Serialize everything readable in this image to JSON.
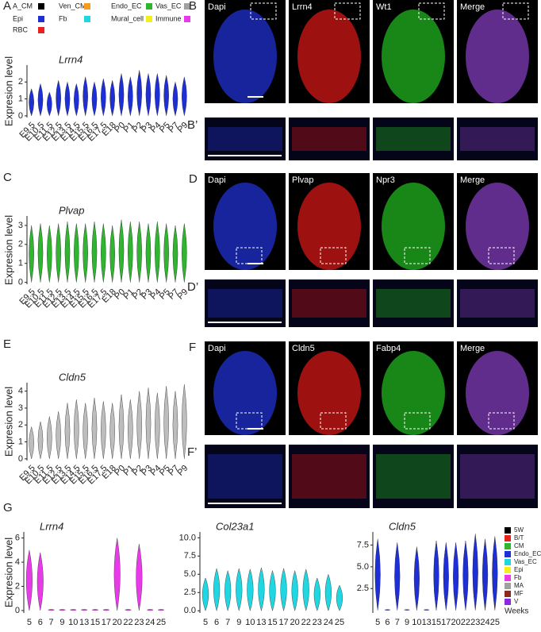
{
  "legend": {
    "items": [
      {
        "name": "A_CM",
        "color": "#000000"
      },
      {
        "name": "Ven_CM",
        "color": "#f39c1f"
      },
      {
        "name": "Endo_EC",
        "color": "#2fb52f"
      },
      {
        "name": "Vas_EC",
        "color": "#a0a0a0"
      },
      {
        "name": "Epi",
        "color": "#1e2fd6"
      },
      {
        "name": "Fb",
        "color": "#20d6e0"
      },
      {
        "name": "Mural_cell",
        "color": "#f2ef1a"
      },
      {
        "name": "Immune",
        "color": "#e83ae8"
      },
      {
        "name": "RBC",
        "color": "#e8231e"
      }
    ]
  },
  "chart_data": [
    {
      "type": "violin",
      "panel": "A",
      "title": "Lrrn4",
      "ylabel": "Expresion level",
      "categories": [
        "E9.5",
        "E10.5",
        "E11.5",
        "E12.5",
        "E13.5",
        "E14.5",
        "E15.5",
        "E16.5",
        "E17.5",
        "E18",
        "P0",
        "P1",
        "P2",
        "P3",
        "P4",
        "P5",
        "P7",
        "P9"
      ],
      "series": [
        {
          "color": "#1e2fd6",
          "values": [
            1.6,
            1.9,
            1.4,
            2.1,
            2.0,
            1.9,
            2.3,
            2.0,
            2.2,
            2.1,
            2.5,
            2.3,
            2.7,
            2.5,
            2.5,
            2.4,
            2.0,
            2.3
          ]
        }
      ],
      "ylim": [
        -0.1,
        3
      ],
      "yticks": [
        0,
        1,
        2
      ]
    },
    {
      "type": "violin",
      "panel": "C",
      "title": "Plvap",
      "ylabel": "Expresion level",
      "categories": [
        "E9.5",
        "E10.5",
        "E11.5",
        "E12.5",
        "E13.5",
        "E14.5",
        "E15.5",
        "E16.5",
        "E17.5",
        "E18",
        "P0",
        "P1",
        "P2",
        "P3",
        "P4",
        "P5",
        "P7",
        "P9"
      ],
      "series": [
        {
          "color": "#2fb52f",
          "values": [
            3.0,
            3.1,
            3.0,
            3.1,
            3.2,
            3.1,
            3.1,
            3.2,
            3.1,
            3.0,
            3.3,
            3.2,
            3.2,
            3.1,
            3.2,
            3.1,
            3.0,
            3.1
          ]
        }
      ],
      "ylim": [
        -0.1,
        3.5
      ],
      "yticks": [
        0,
        1,
        2,
        3
      ]
    },
    {
      "type": "violin",
      "panel": "E",
      "title": "Cldn5",
      "ylabel": "Expresion level",
      "categories": [
        "E9.5",
        "E10.5",
        "E11.5",
        "E12.5",
        "E13.5",
        "E14.5",
        "E15.5",
        "E16.5",
        "E17.5",
        "E18",
        "P0",
        "P1",
        "P2",
        "P3",
        "P4",
        "P5",
        "P7",
        "P9"
      ],
      "series": [
        {
          "color": "#bdbdbd",
          "values": [
            1.9,
            2.2,
            2.5,
            2.8,
            3.3,
            3.5,
            3.3,
            3.6,
            3.4,
            3.3,
            3.8,
            3.5,
            4.0,
            4.2,
            3.9,
            4.3,
            4.0,
            4.4
          ]
        }
      ],
      "ylim": [
        -0.1,
        4.5
      ],
      "yticks": [
        0,
        1,
        2,
        3,
        4
      ]
    },
    {
      "type": "violin",
      "panel": "G",
      "title": "Lrrn4",
      "ylabel": "Expresion level",
      "categories": [
        "5",
        "6",
        "7",
        "9",
        "10",
        "13",
        "15",
        "17",
        "20",
        "22",
        "23",
        "24",
        "25"
      ],
      "series": [
        {
          "color": "#e83ae8",
          "values": [
            5.0,
            4.8,
            0.1,
            0.1,
            0.1,
            0.1,
            0.1,
            0.1,
            6.0,
            0.1,
            5.5,
            0.1,
            0.1
          ]
        }
      ],
      "ylim": [
        -0.2,
        6.5
      ],
      "yticks": [
        0,
        2,
        4,
        6
      ]
    },
    {
      "type": "violin",
      "title": "Col23a1",
      "categories": [
        "5",
        "6",
        "7",
        "9",
        "10",
        "13",
        "15",
        "17",
        "20",
        "22",
        "23",
        "24",
        "25"
      ],
      "series": [
        {
          "color": "#20d6e0",
          "values": [
            4.5,
            5.8,
            5.5,
            5.8,
            5.7,
            5.9,
            5.5,
            5.8,
            5.5,
            5.7,
            4.5,
            5.0,
            3.5
          ]
        }
      ],
      "ylim": [
        -0.3,
        10.8
      ],
      "yticks": [
        {
          "value": 0,
          "label": "0.0"
        },
        {
          "value": 2.5,
          "label": "2.5"
        },
        {
          "value": 5,
          "label": "5.0"
        },
        {
          "value": 7.5,
          "label": "7.5"
        },
        {
          "value": 10,
          "label": "10.0"
        }
      ]
    },
    {
      "type": "violin",
      "title": "Cldn5",
      "categories": [
        "5",
        "6",
        "7",
        "9",
        "10",
        "13",
        "15",
        "17",
        "20",
        "22",
        "23",
        "24",
        "25"
      ],
      "series": [
        {
          "color": "#1e2fd6",
          "values": [
            8.2,
            0.1,
            7.8,
            0.1,
            7.3,
            0.1,
            8.0,
            7.8,
            7.8,
            8.0,
            8.8,
            8.2,
            8.5
          ]
        }
      ],
      "ylim": [
        -0.3,
        9
      ],
      "yticks": [
        {
          "value": 2.5,
          "label": "2.5"
        },
        {
          "value": 5,
          "label": "5.0"
        },
        {
          "value": 7.5,
          "label": "7.5"
        }
      ]
    }
  ],
  "g_legend": {
    "items": [
      {
        "name": "5W",
        "color": "#000000"
      },
      {
        "name": "B/T",
        "color": "#e8231e"
      },
      {
        "name": "CM",
        "color": "#2fb52f"
      },
      {
        "name": "Endo_EC",
        "color": "#1e2fd6"
      },
      {
        "name": "Vas_EC",
        "color": "#20d6e0"
      },
      {
        "name": "Epi",
        "color": "#f2ef1a"
      },
      {
        "name": "Fb",
        "color": "#e83ae8"
      },
      {
        "name": "MA",
        "color": "#a0a0a0"
      },
      {
        "name": "MF",
        "color": "#8b2a1a"
      },
      {
        "name": "V",
        "color": "#8a2be2"
      }
    ],
    "title": "Weeks"
  },
  "images": [
    {
      "label": "B",
      "channels": [
        "Dapi",
        "Lrrn4",
        "Wt1",
        "Merge"
      ],
      "inset_label": "B’"
    },
    {
      "label": "D",
      "channels": [
        "Dapi",
        "Plvap",
        "Npr3",
        "Merge"
      ],
      "inset_label": "D’"
    },
    {
      "label": "F",
      "channels": [
        "Dapi",
        "Cldn5",
        "Fabp4",
        "Merge"
      ],
      "inset_label": "F’"
    }
  ]
}
